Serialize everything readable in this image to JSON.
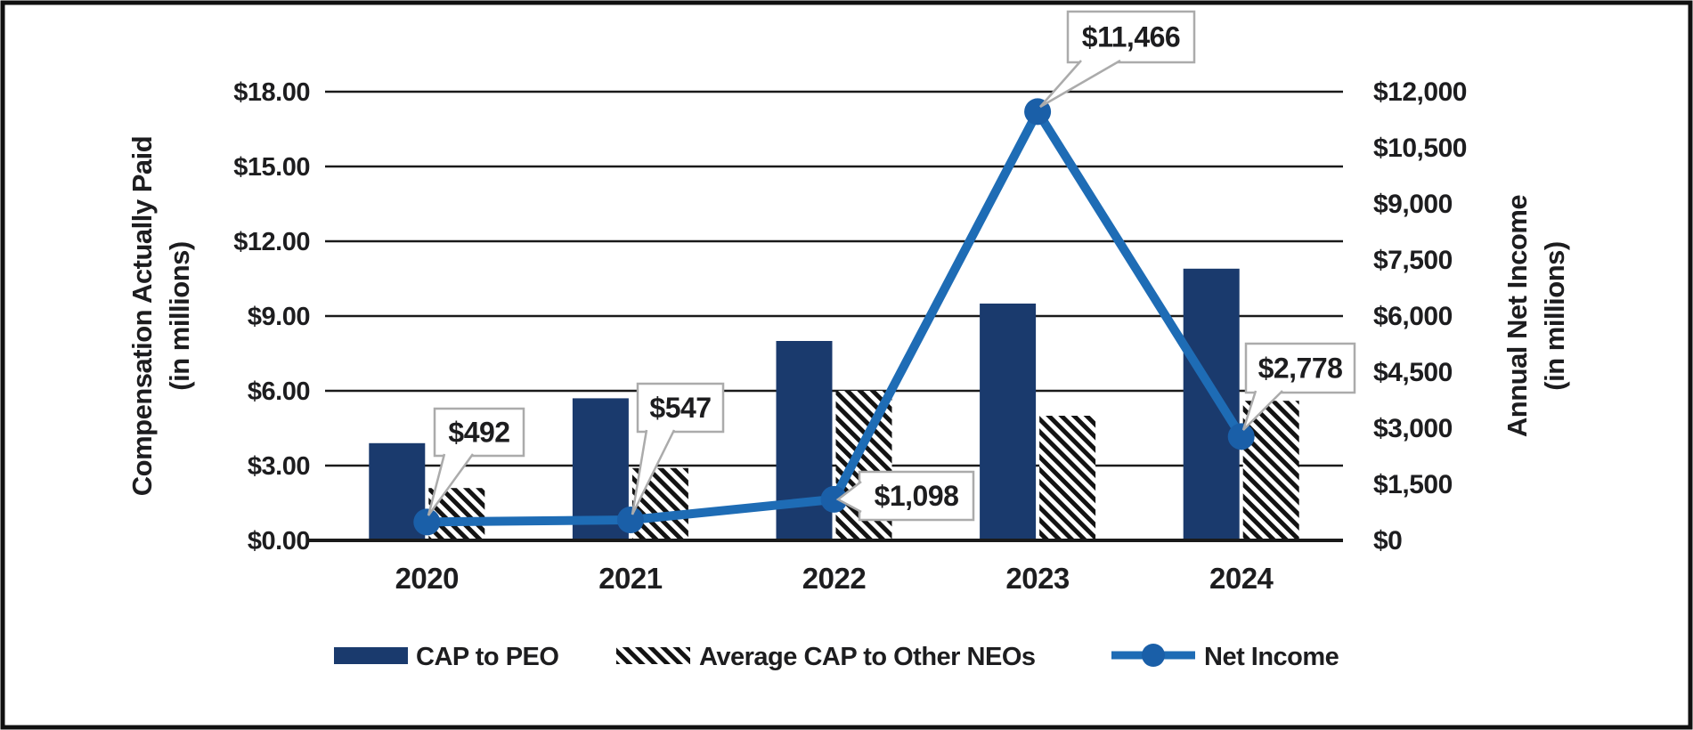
{
  "chart_data": {
    "type": "combo (bar + line, dual axis)",
    "categories": [
      "2020",
      "2021",
      "2022",
      "2023",
      "2024"
    ],
    "bar_series": [
      {
        "name": "CAP to PEO",
        "style": "solid",
        "axis": "left",
        "values": [
          3.9,
          5.7,
          8.0,
          9.5,
          10.9
        ]
      },
      {
        "name": "Average CAP to Other NEOs",
        "style": "hatched",
        "axis": "left",
        "values": [
          2.1,
          2.9,
          6.0,
          5.0,
          5.6
        ]
      }
    ],
    "line_series": {
      "name": "Net Income",
      "axis": "right",
      "values": [
        492,
        547,
        1098,
        11466,
        2778
      ],
      "labels": [
        "$492",
        "$547",
        "$1,098",
        "$11,466",
        "$2,778"
      ]
    },
    "left_axis": {
      "title_lines": [
        "Compensation Actually Paid",
        "(in millions)"
      ],
      "min": 0,
      "max": 18,
      "step": 3,
      "ticks": [
        "$0.00",
        "$3.00",
        "$6.00",
        "$9.00",
        "$12.00",
        "$15.00",
        "$18.00"
      ]
    },
    "right_axis": {
      "title_lines": [
        "Annual Net Income",
        "(in millions)"
      ],
      "min": 0,
      "max": 12000,
      "step": 1500,
      "ticks": [
        "$0",
        "$1,500",
        "$3,000",
        "$4,500",
        "$6,000",
        "$7,500",
        "$9,000",
        "$10,500",
        "$12,000"
      ]
    },
    "grid": true,
    "legend_position": "bottom"
  },
  "colors": {
    "bar_navy": "#1a3a6d",
    "line_blue": "#1e6cb5",
    "marker_blue": "#1a5fa8",
    "hatch_black": "#131313",
    "grid_black": "#1a1a1a",
    "callout_border": "#ababab",
    "callout_fill": "#ffffff",
    "text": "#1d1d1f",
    "frame": "#111111",
    "background": "#ffffff"
  }
}
